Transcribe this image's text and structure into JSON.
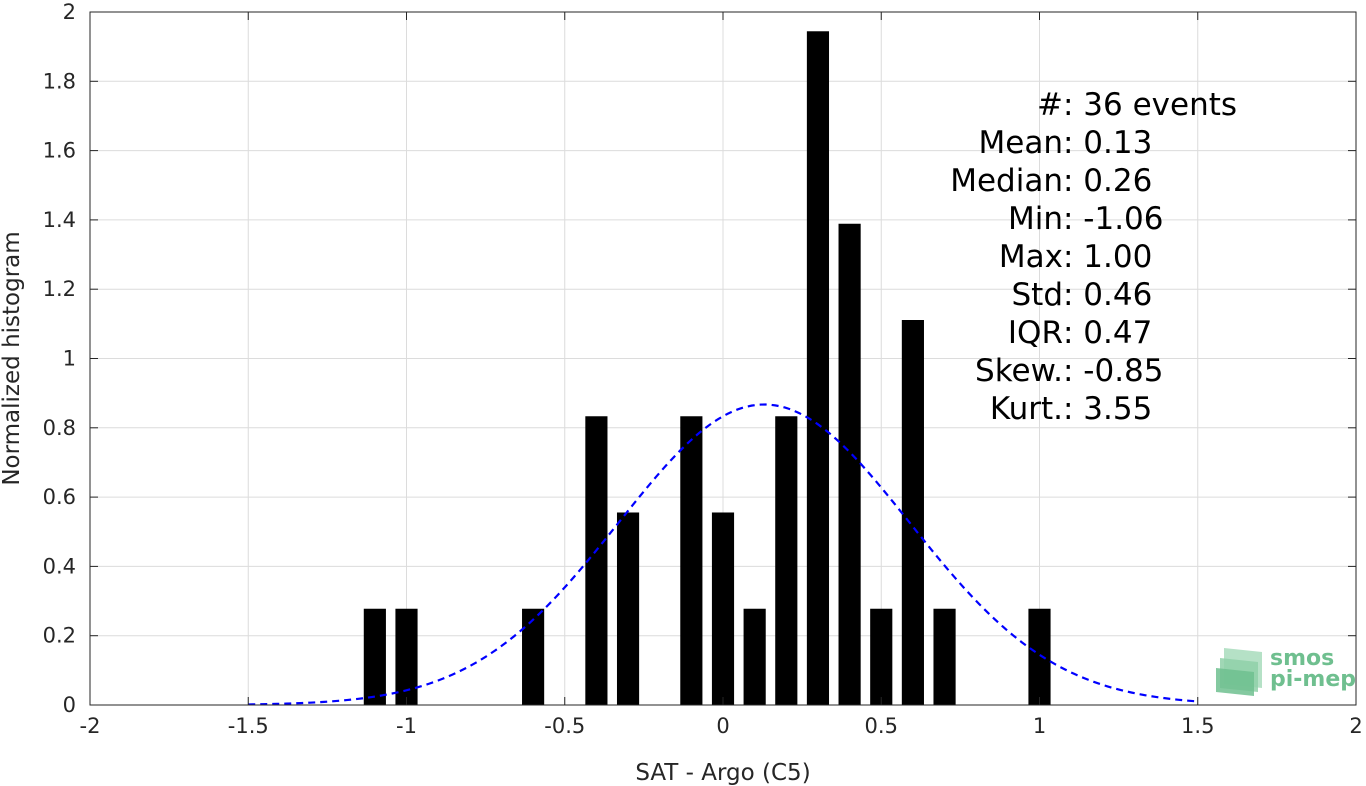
{
  "chart_data": {
    "type": "bar",
    "xlabel": "SAT - Argo (C5)",
    "ylabel": "Normalized histogram",
    "xlim": [
      -2,
      2
    ],
    "ylim": [
      0,
      2
    ],
    "grid": true,
    "x_ticks": [
      "-2",
      "-1.5",
      "-1",
      "-0.5",
      "0",
      "0.5",
      "1",
      "1.5",
      "2"
    ],
    "y_ticks": [
      "0",
      "0.2",
      "0.4",
      "0.6",
      "0.8",
      "1",
      "1.2",
      "1.4",
      "1.6",
      "1.8",
      "2"
    ],
    "bar_width": 0.07,
    "bars": [
      {
        "x": -1.1,
        "y": 0.2778
      },
      {
        "x": -1.0,
        "y": 0.2778
      },
      {
        "x": -0.6,
        "y": 0.2778
      },
      {
        "x": -0.4,
        "y": 0.8333
      },
      {
        "x": -0.3,
        "y": 0.5556
      },
      {
        "x": -0.1,
        "y": 0.8333
      },
      {
        "x": 0.0,
        "y": 0.5556
      },
      {
        "x": 0.1,
        "y": 0.2778
      },
      {
        "x": 0.2,
        "y": 0.8333
      },
      {
        "x": 0.3,
        "y": 1.9444
      },
      {
        "x": 0.4,
        "y": 1.3889
      },
      {
        "x": 0.5,
        "y": 0.2778
      },
      {
        "x": 0.6,
        "y": 1.1111
      },
      {
        "x": 0.7,
        "y": 0.2778
      },
      {
        "x": 1.0,
        "y": 0.2778
      }
    ],
    "fit_curve": {
      "style": "dashed",
      "color": "#0000ff",
      "mean": 0.13,
      "std": 0.46,
      "x_range": [
        -1.5,
        1.5
      ]
    },
    "stats_annotation": [
      {
        "label": "#  ",
        "value": ": 36 events"
      },
      {
        "label": "Mean ",
        "value": ": 0.13"
      },
      {
        "label": "Median ",
        "value": ": 0.26"
      },
      {
        "label": "Min ",
        "value": ": -1.06"
      },
      {
        "label": "Max ",
        "value": ": 1.00"
      },
      {
        "label": "Std ",
        "value": ": 0.46"
      },
      {
        "label": "IQR ",
        "value": ": 0.47"
      },
      {
        "label": "Skew. ",
        "value": ": -0.85"
      },
      {
        "label": "Kurt. ",
        "value": ": 3.55"
      }
    ]
  },
  "watermark": {
    "line1": "smos",
    "line2": "pi-mep",
    "color": "#6fbf8f"
  },
  "colors": {
    "bar": "#000000",
    "grid": "#dcdcdc",
    "axis": "#262626"
  }
}
